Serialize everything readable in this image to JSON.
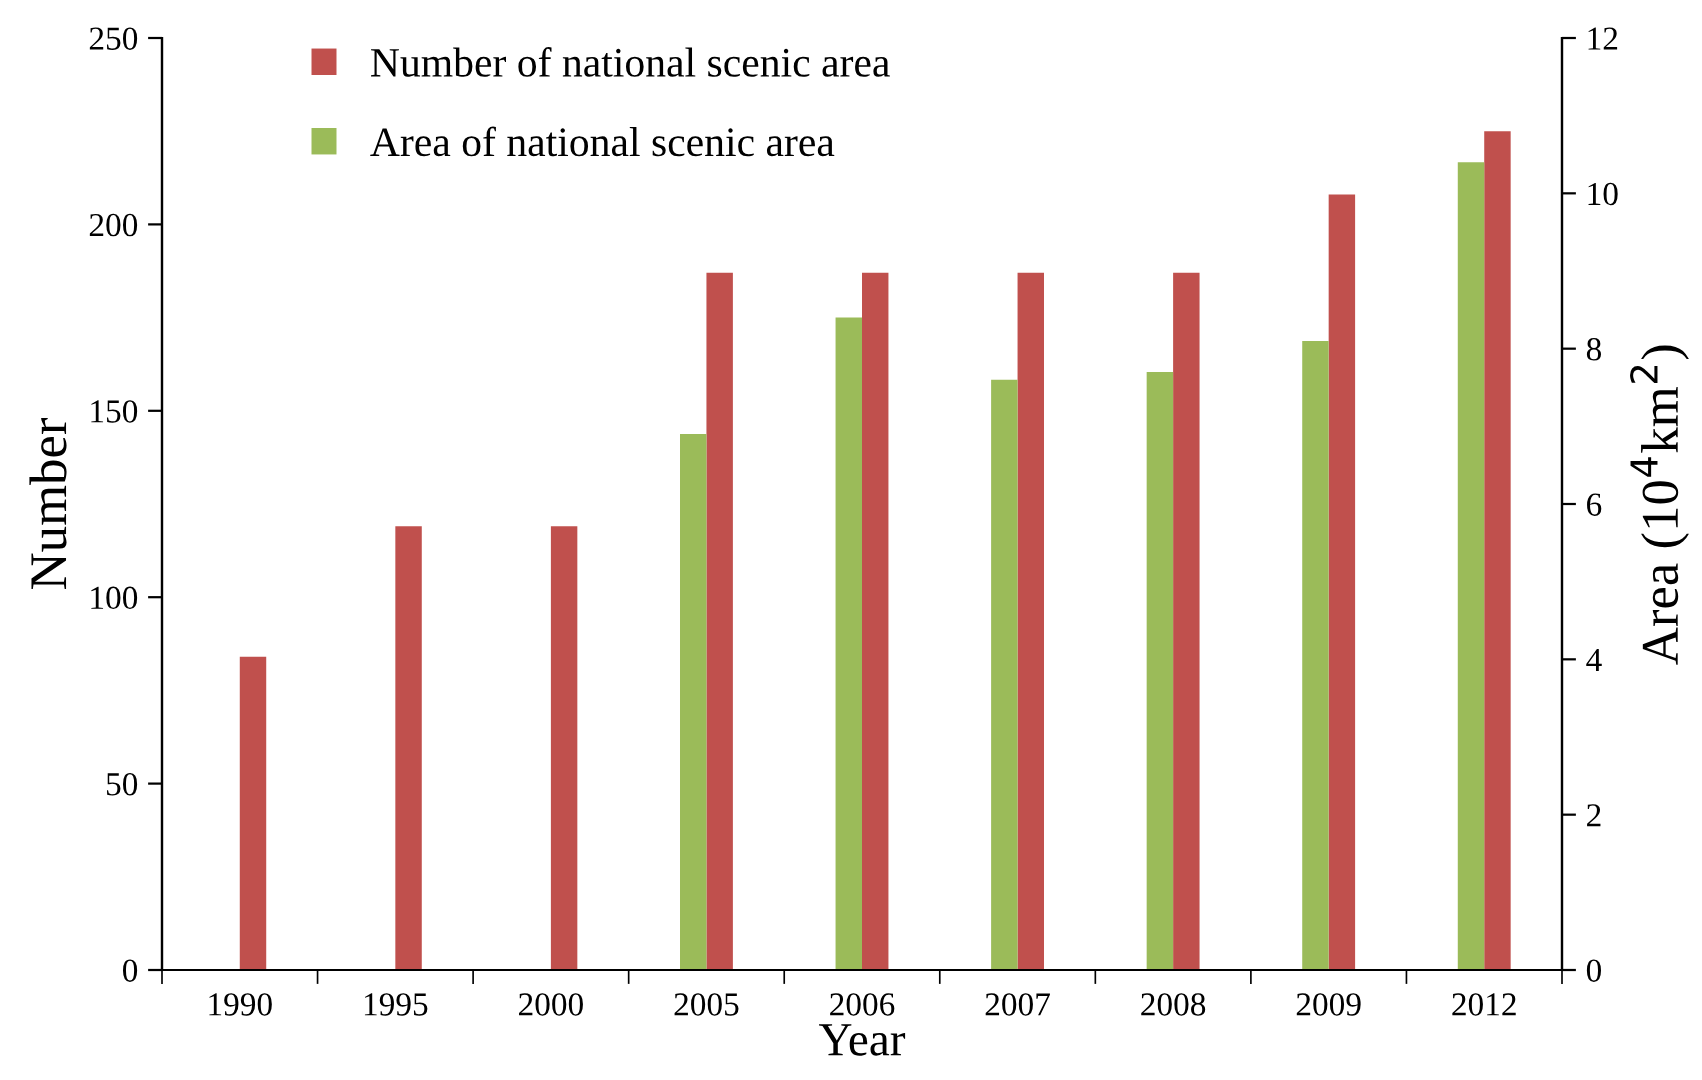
{
  "chart_data": {
    "type": "bar",
    "xlabel": "Year",
    "ylabel": "Number",
    "y2label": "Area (10$^{4}$km$^{2}$)",
    "categories": [
      "1990",
      "1995",
      "2000",
      "2005",
      "2006",
      "2007",
      "2008",
      "2009",
      "2012"
    ],
    "series": [
      {
        "name": "Number of national scenic area",
        "color": "#c0504d",
        "values": [
          84,
          119,
          119,
          187,
          187,
          187,
          187,
          208,
          225
        ]
      },
      {
        "name": "Area of national scenic area",
        "color": "#9bbb59",
        "axis": "y2",
        "values": [
          null,
          null,
          null,
          6.9,
          8.4,
          7.6,
          7.7,
          8.1,
          10.4
        ]
      }
    ],
    "ylim": [
      0,
      250
    ],
    "yticks": [
      0,
      50,
      100,
      150,
      200,
      250
    ],
    "y2lim": [
      0,
      12
    ],
    "y2ticks": [
      0,
      2,
      4,
      6,
      8,
      10,
      12
    ],
    "grid": false,
    "legend": "top left"
  }
}
